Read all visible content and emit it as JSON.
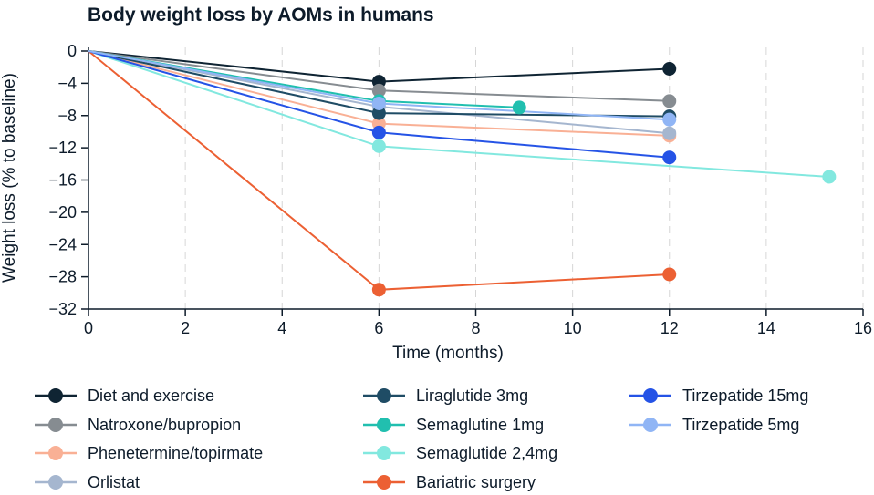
{
  "chart_data": {
    "type": "line",
    "title": "Body weight loss by AOMs in humans",
    "xlabel": "Time (months)",
    "ylabel": "Weight loss (% to baseline)",
    "xlim": [
      0,
      16
    ],
    "ylim": [
      -32,
      0
    ],
    "xticks": [
      0,
      2,
      4,
      6,
      8,
      10,
      12,
      14,
      16
    ],
    "yticks": [
      0,
      -4,
      -8,
      -12,
      -16,
      -20,
      -24,
      -28,
      -32
    ],
    "grid": "vertical dashed",
    "legend_position": "bottom",
    "series": [
      {
        "name": "Diet and exercise",
        "color": "#0f2433",
        "points": [
          [
            0,
            0
          ],
          [
            6,
            -3.8
          ],
          [
            12,
            -2.2
          ]
        ]
      },
      {
        "name": "Natroxone/bupropion",
        "color": "#868c91",
        "points": [
          [
            0,
            0
          ],
          [
            6,
            -4.9
          ],
          [
            12,
            -6.2
          ]
        ]
      },
      {
        "name": "Phenetermine/topirmate",
        "color": "#f9b095",
        "points": [
          [
            0,
            0
          ],
          [
            6,
            -9.0
          ],
          [
            12,
            -10.5
          ]
        ]
      },
      {
        "name": "Orlistat",
        "color": "#a5b6cf",
        "points": [
          [
            0,
            0
          ],
          [
            6,
            -6.9
          ],
          [
            12,
            -10.2
          ]
        ]
      },
      {
        "name": "Liraglutide 3mg",
        "color": "#1f4c65",
        "points": [
          [
            0,
            0
          ],
          [
            6,
            -7.7
          ],
          [
            12,
            -8.1
          ]
        ]
      },
      {
        "name": "Semaglutine 1mg",
        "color": "#21bfaf",
        "points": [
          [
            0,
            0
          ],
          [
            6,
            -6.2
          ],
          [
            8.9,
            -7.0
          ]
        ]
      },
      {
        "name": "Semaglutide 2,4mg",
        "color": "#82e8df",
        "points": [
          [
            0,
            0
          ],
          [
            6,
            -11.8
          ],
          [
            15.3,
            -15.6
          ]
        ]
      },
      {
        "name": "Bariatric surgery",
        "color": "#ec6033",
        "points": [
          [
            0,
            0
          ],
          [
            6,
            -29.6
          ],
          [
            12,
            -27.7
          ]
        ]
      },
      {
        "name": "Tirzepatide 15mg",
        "color": "#2553e6",
        "points": [
          [
            0,
            0
          ],
          [
            6,
            -10.1
          ],
          [
            12,
            -13.2
          ]
        ]
      },
      {
        "name": "Tirzepatide 5mg",
        "color": "#90b5f5",
        "points": [
          [
            0,
            0
          ],
          [
            6,
            -6.5
          ],
          [
            12,
            -8.5
          ]
        ]
      }
    ]
  }
}
